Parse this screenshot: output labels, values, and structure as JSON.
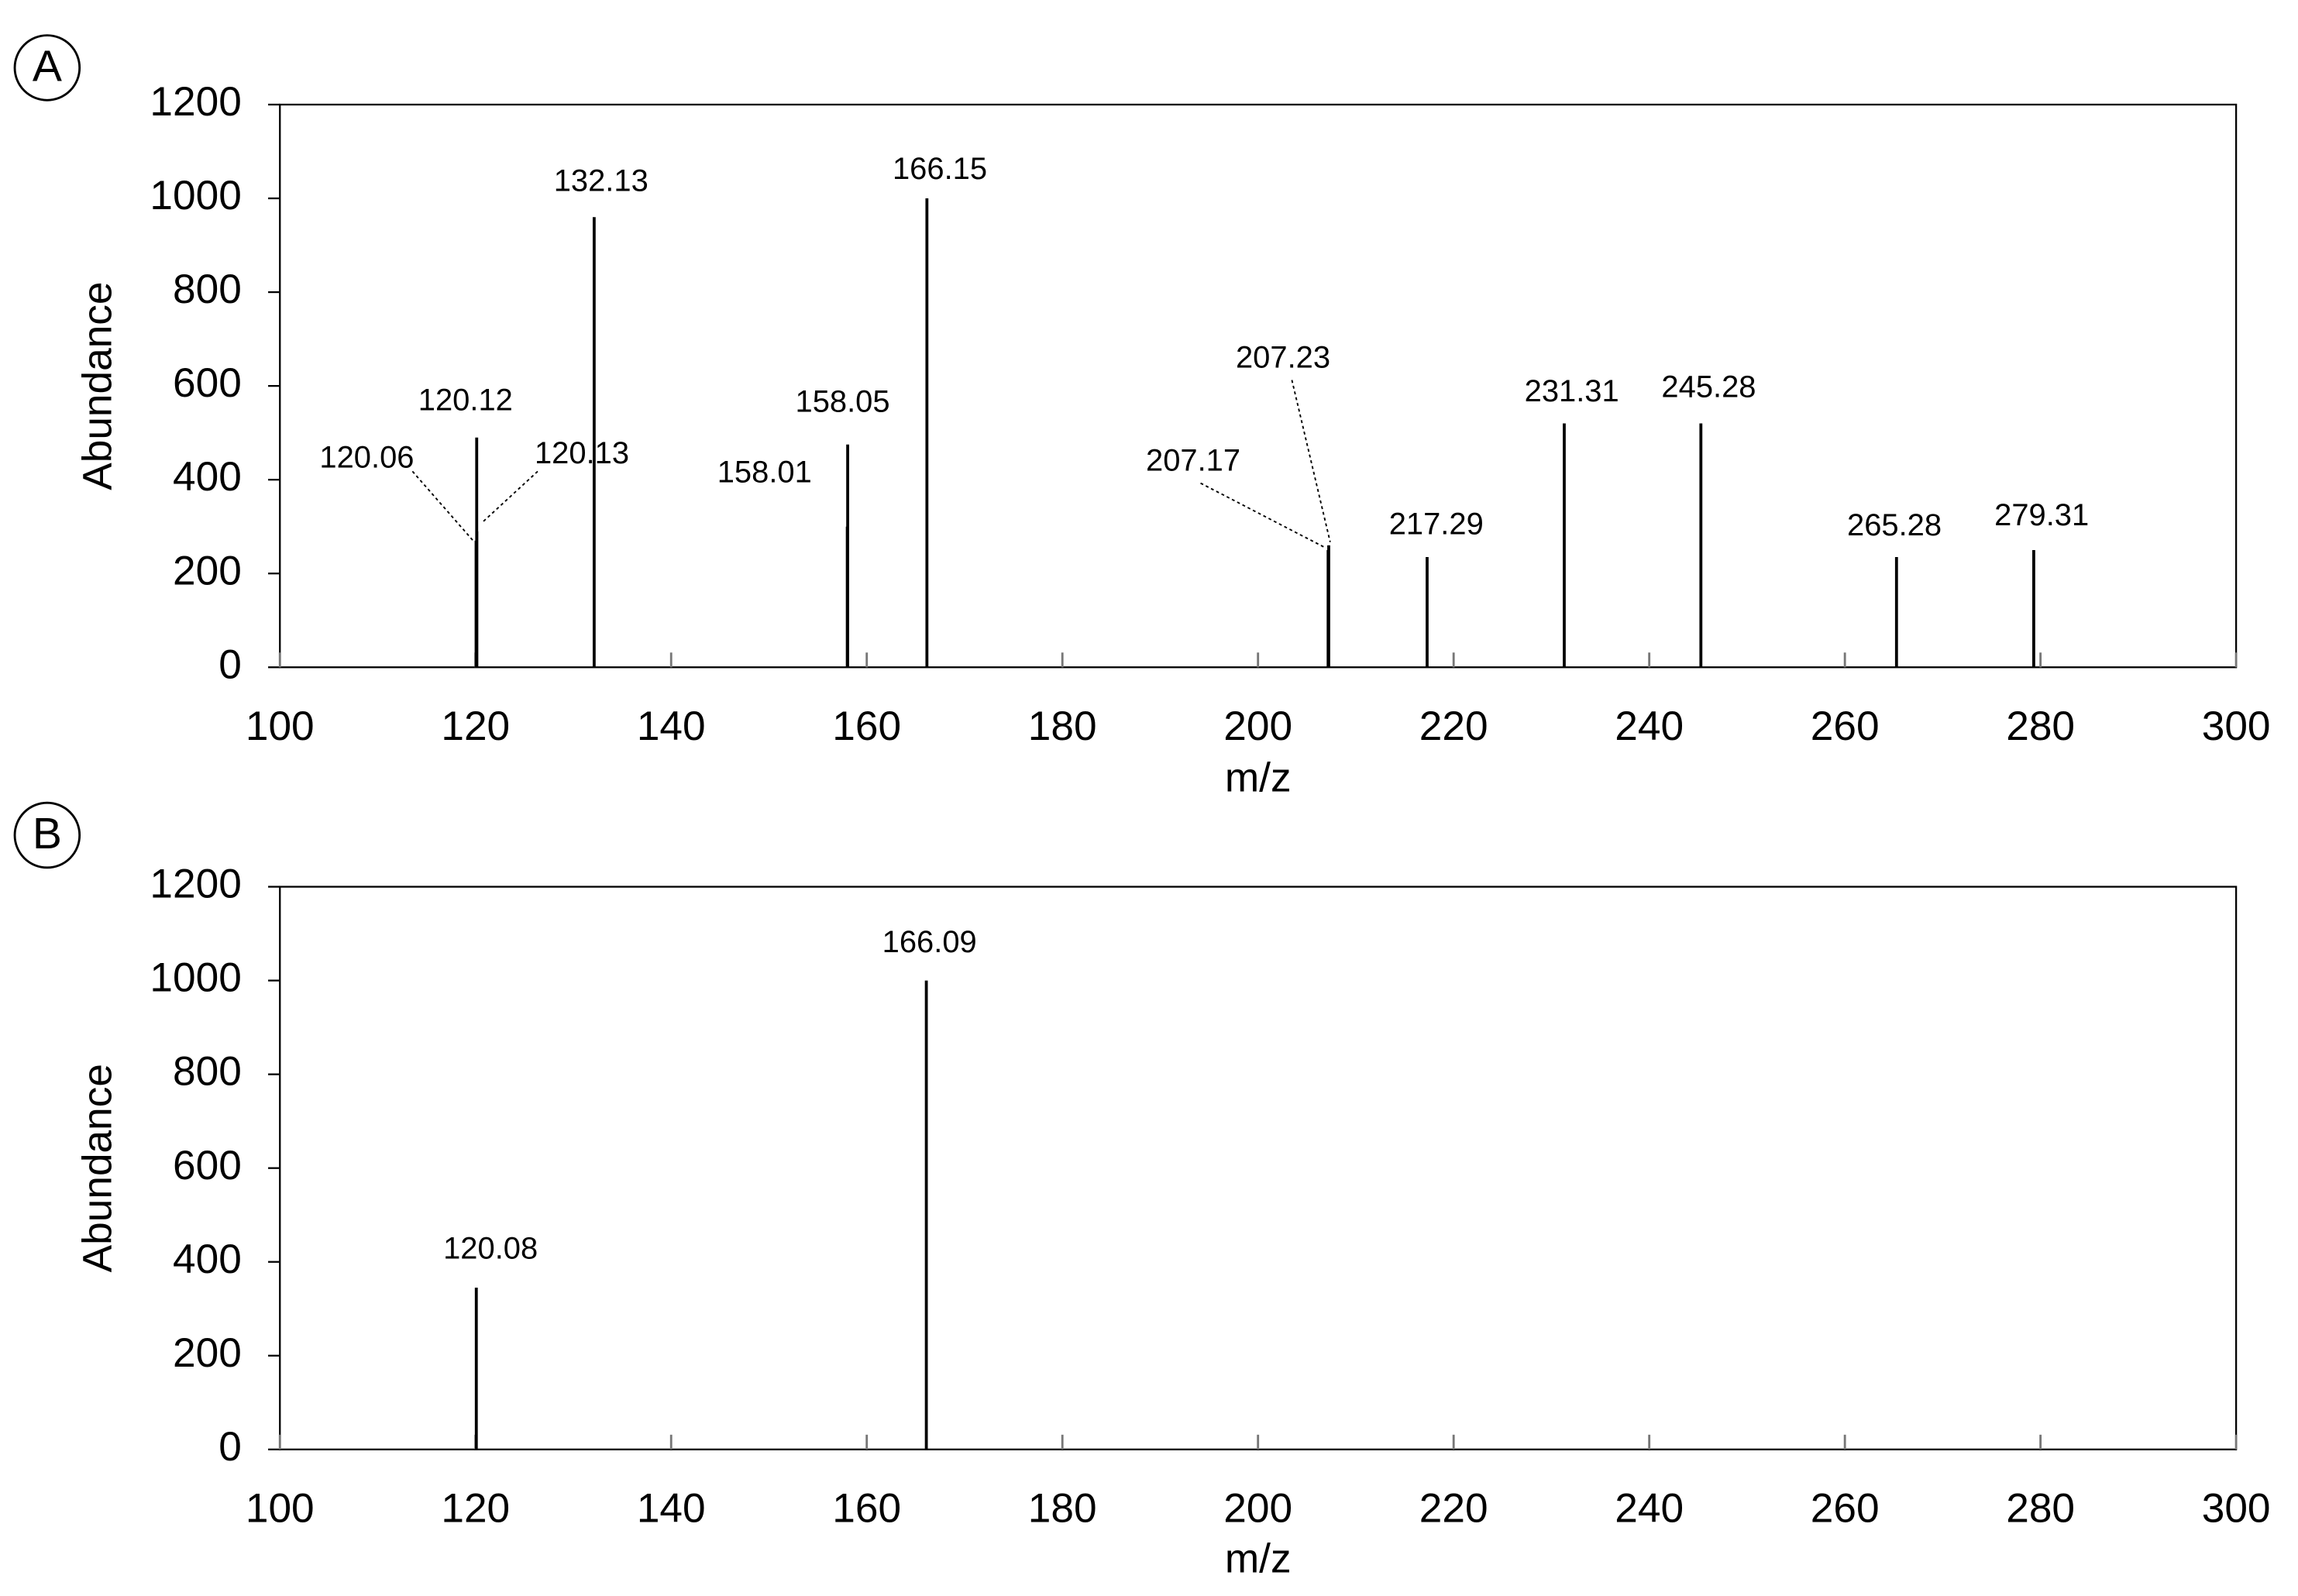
{
  "chart_data": [
    {
      "type": "stem",
      "panel": "A",
      "xlabel": "m/z",
      "ylabel": "Abundance",
      "x": [
        120.06,
        120.12,
        120.13,
        132.13,
        158.01,
        158.05,
        166.15,
        207.17,
        207.23,
        217.29,
        231.31,
        245.28,
        265.28,
        279.31
      ],
      "values": [
        270,
        490,
        290,
        960,
        300,
        475,
        1000,
        250,
        260,
        235,
        520,
        520,
        235,
        250
      ],
      "color": "#000000",
      "xlim": [
        100,
        300
      ],
      "xticks": [
        100,
        120,
        140,
        160,
        180,
        200,
        220,
        240,
        260,
        280,
        300
      ],
      "ylim": [
        0,
        1200
      ],
      "yticks": [
        0,
        200,
        400,
        600,
        800,
        1000,
        1200
      ]
    },
    {
      "type": "stem",
      "panel": "B",
      "xlabel": "m/z",
      "ylabel": "Abundance",
      "x": [
        120.08,
        166.09
      ],
      "values": [
        345,
        1000
      ],
      "color": "#000000",
      "xlim": [
        100,
        300
      ],
      "xticks": [
        100,
        120,
        140,
        160,
        180,
        200,
        220,
        240,
        260,
        280,
        300
      ],
      "ylim": [
        0,
        1200
      ],
      "yticks": [
        0,
        200,
        400,
        600,
        800,
        1000,
        1200
      ]
    }
  ]
}
